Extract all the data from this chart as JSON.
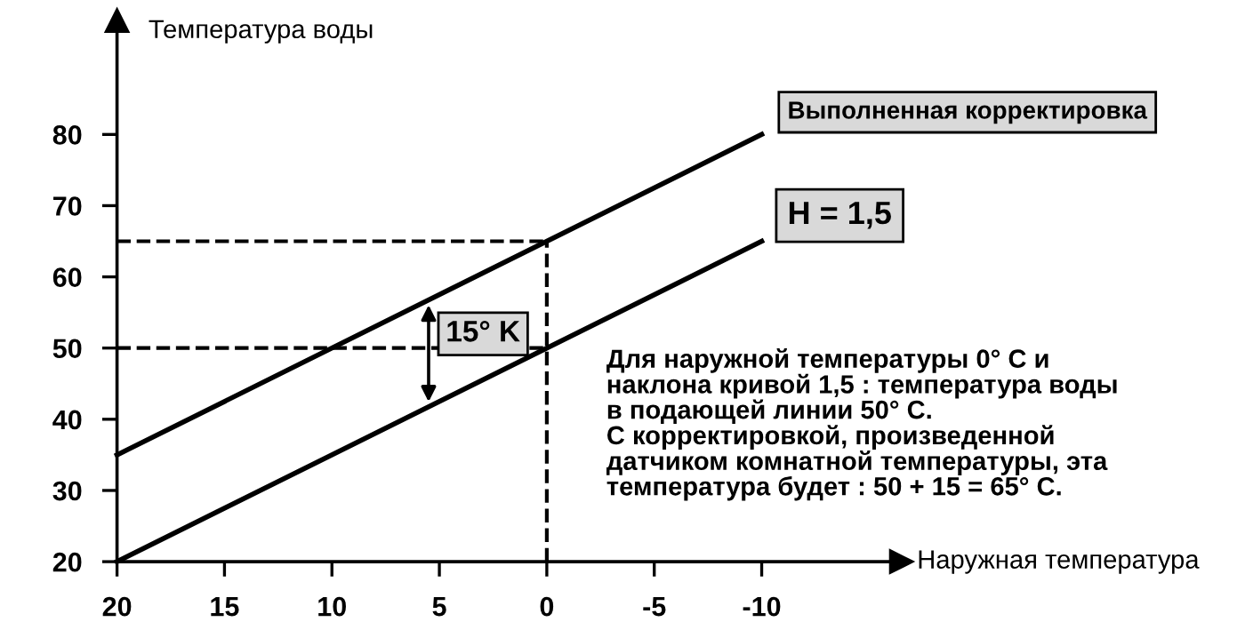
{
  "chart_data": {
    "type": "line",
    "xlabel": "Наружная температура",
    "ylabel": "Температура воды",
    "x": [
      20,
      0,
      -10
    ],
    "series": [
      {
        "name": "Выполненная корректировка",
        "color": "#000000",
        "values": [
          35,
          65,
          80
        ]
      },
      {
        "name": "H = 1,5",
        "color": "#000000",
        "values": [
          20,
          50,
          65
        ]
      }
    ],
    "xlim": [
      20,
      -16.5
    ],
    "ylim": [
      20,
      96
    ],
    "xticks": [
      20,
      15,
      10,
      5,
      0,
      -5,
      -10
    ],
    "yticks": [
      20,
      30,
      40,
      50,
      60,
      70,
      80
    ],
    "ref_lines": [
      {
        "axis": "y",
        "value": 65,
        "line_style": "dashed",
        "color": "#000000"
      },
      {
        "axis": "y",
        "value": 50,
        "line_style": "dashed",
        "color": "#000000"
      },
      {
        "axis": "x",
        "value": 0,
        "line_style": "dashed",
        "color": "#000000"
      }
    ],
    "annotations": [
      {
        "text": "15° K",
        "x": 5.5,
        "y": 49
      },
      "Для наружной температуры 0° C и\nнаклона кривой 1,5 : температура воды\nв подающей линии 50° C.\nC корректировкой, произведенной\nдатчиком комнатной температуры, эта\nтемпература будет : 50 + 15 = 65° C."
    ],
    "grid": false,
    "legend": false,
    "marker": "none",
    "line_style": "solid"
  }
}
